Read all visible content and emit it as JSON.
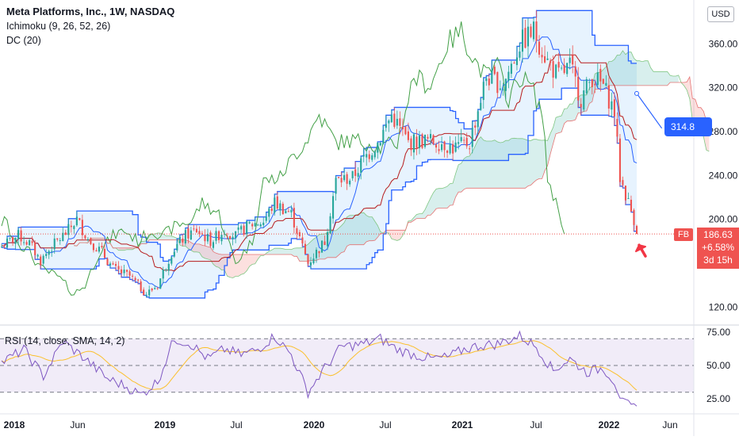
{
  "header": {
    "title": "Meta Platforms, Inc., 1W, NASDAQ",
    "ind1": "Ichimoku (9, 26, 52, 26)",
    "ind2": "DC (20)"
  },
  "currency": "USD",
  "ticker": "FB",
  "last_price": "186.63",
  "change": "+6.58%",
  "countdown": "3d 15h",
  "projection_label": "314.8",
  "rsi_label": "RSI (14, close, SMA, 14, 2)",
  "colors": {
    "up": "#26a69a",
    "down": "#ef5350",
    "donchian": "#2962ff",
    "tenkan": "#2962ff",
    "kijun": "#b71c1c",
    "chikou": "#43a047",
    "rsi": "#7e57c2",
    "rsi_sma": "#fbc02d",
    "arrow": "#f23645"
  },
  "chart_data": {
    "type": "candlestick",
    "price_axis": {
      "ticks": [
        120,
        160,
        200,
        240,
        280,
        320,
        360
      ],
      "range": [
        105,
        400
      ]
    },
    "rsi_axis": {
      "ticks": [
        25,
        50,
        75
      ],
      "range": [
        15,
        79
      ],
      "bands": [
        30,
        70
      ]
    },
    "x_axis_labels": [
      "2018",
      "Jun",
      "2019",
      "Jul",
      "2020",
      "Jul",
      "2021",
      "Jul",
      "2022",
      "Jun"
    ],
    "price_waypoints": [
      [
        0,
        175
      ],
      [
        6,
        185
      ],
      [
        10,
        178
      ],
      [
        14,
        162
      ],
      [
        18,
        175
      ],
      [
        24,
        190
      ],
      [
        27,
        200
      ],
      [
        31,
        182
      ],
      [
        36,
        170
      ],
      [
        40,
        155
      ],
      [
        46,
        148
      ],
      [
        52,
        132
      ],
      [
        56,
        140
      ],
      [
        61,
        170
      ],
      [
        66,
        185
      ],
      [
        70,
        190
      ],
      [
        75,
        180
      ],
      [
        80,
        190
      ],
      [
        84,
        185
      ],
      [
        89,
        195
      ],
      [
        94,
        198
      ],
      [
        98,
        215
      ],
      [
        104,
        205
      ],
      [
        110,
        160
      ],
      [
        116,
        180
      ],
      [
        120,
        235
      ],
      [
        126,
        238
      ],
      [
        130,
        255
      ],
      [
        135,
        270
      ],
      [
        140,
        295
      ],
      [
        146,
        270
      ],
      [
        152,
        272
      ],
      [
        158,
        270
      ],
      [
        162,
        265
      ],
      [
        168,
        270
      ],
      [
        174,
        330
      ],
      [
        180,
        322
      ],
      [
        186,
        360
      ],
      [
        191,
        372
      ],
      [
        196,
        344
      ],
      [
        200,
        330
      ],
      [
        204,
        340
      ],
      [
        208,
        310
      ],
      [
        212,
        330
      ],
      [
        216,
        322
      ],
      [
        220,
        298
      ],
      [
        222,
        238
      ],
      [
        227,
        200
      ],
      [
        228,
        186.63
      ]
    ],
    "candle_count": 229,
    "rsi_waypoints": [
      [
        0,
        52
      ],
      [
        8,
        62
      ],
      [
        15,
        42
      ],
      [
        22,
        68
      ],
      [
        30,
        55
      ],
      [
        38,
        40
      ],
      [
        44,
        35
      ],
      [
        50,
        28
      ],
      [
        56,
        38
      ],
      [
        62,
        70
      ],
      [
        68,
        66
      ],
      [
        74,
        55
      ],
      [
        80,
        62
      ],
      [
        86,
        58
      ],
      [
        92,
        62
      ],
      [
        98,
        72
      ],
      [
        104,
        58
      ],
      [
        110,
        30
      ],
      [
        116,
        48
      ],
      [
        122,
        64
      ],
      [
        130,
        66
      ],
      [
        136,
        70
      ],
      [
        142,
        62
      ],
      [
        148,
        58
      ],
      [
        154,
        55
      ],
      [
        160,
        56
      ],
      [
        166,
        62
      ],
      [
        172,
        65
      ],
      [
        178,
        66
      ],
      [
        186,
        72
      ],
      [
        192,
        64
      ],
      [
        198,
        46
      ],
      [
        204,
        55
      ],
      [
        210,
        45
      ],
      [
        216,
        48
      ],
      [
        220,
        38
      ],
      [
        223,
        22
      ],
      [
        227,
        18
      ],
      [
        228,
        18
      ]
    ],
    "projection": {
      "from": [
        228,
        314.8
      ],
      "to": [
        237,
        283
      ]
    },
    "last_price": 186.63,
    "annotation": "arrow pointing at latest candle"
  }
}
